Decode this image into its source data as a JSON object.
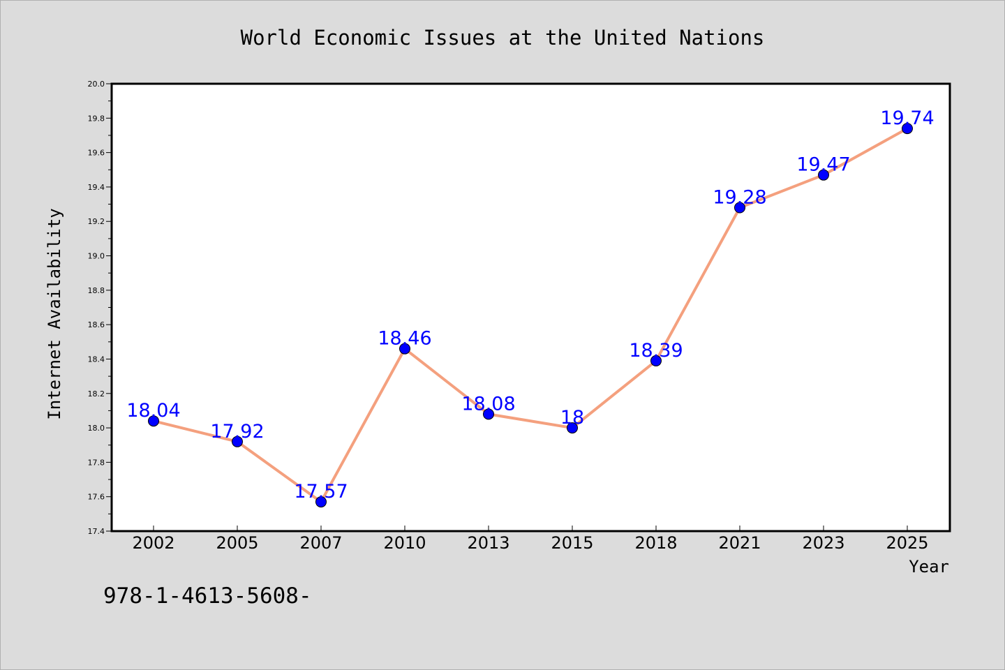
{
  "chart_data": {
    "type": "line",
    "title": "World Economic Issues at the United Nations",
    "xlabel": "Year",
    "ylabel": "Internet Availability",
    "categories": [
      "2002",
      "2005",
      "2007",
      "2010",
      "2013",
      "2015",
      "2018",
      "2021",
      "2023",
      "2025"
    ],
    "values": [
      18.04,
      17.92,
      17.57,
      18.46,
      18.08,
      18,
      18.39,
      19.28,
      19.47,
      19.74
    ],
    "data_labels": [
      "18.04",
      "17.92",
      "17.57",
      "18.46",
      "18.08",
      "18",
      "18.39",
      "19.28",
      "19.47",
      "19.74"
    ],
    "ylim": [
      17.4,
      20.0
    ],
    "yticks": [
      "17.4",
      "17.6",
      "17.8",
      "18.0",
      "18.2",
      "18.4",
      "18.6",
      "18.8",
      "19.0",
      "19.2",
      "19.4",
      "19.6",
      "19.8",
      "20.0"
    ],
    "grid": false,
    "legend": "none",
    "colors": {
      "line": "#f4a07e",
      "marker": "#0000ff",
      "data_label": "#0000ff",
      "background": "#dcdcdc",
      "plot_background": "#ffffff"
    }
  },
  "footer_text": "978-1-4613-5608-"
}
